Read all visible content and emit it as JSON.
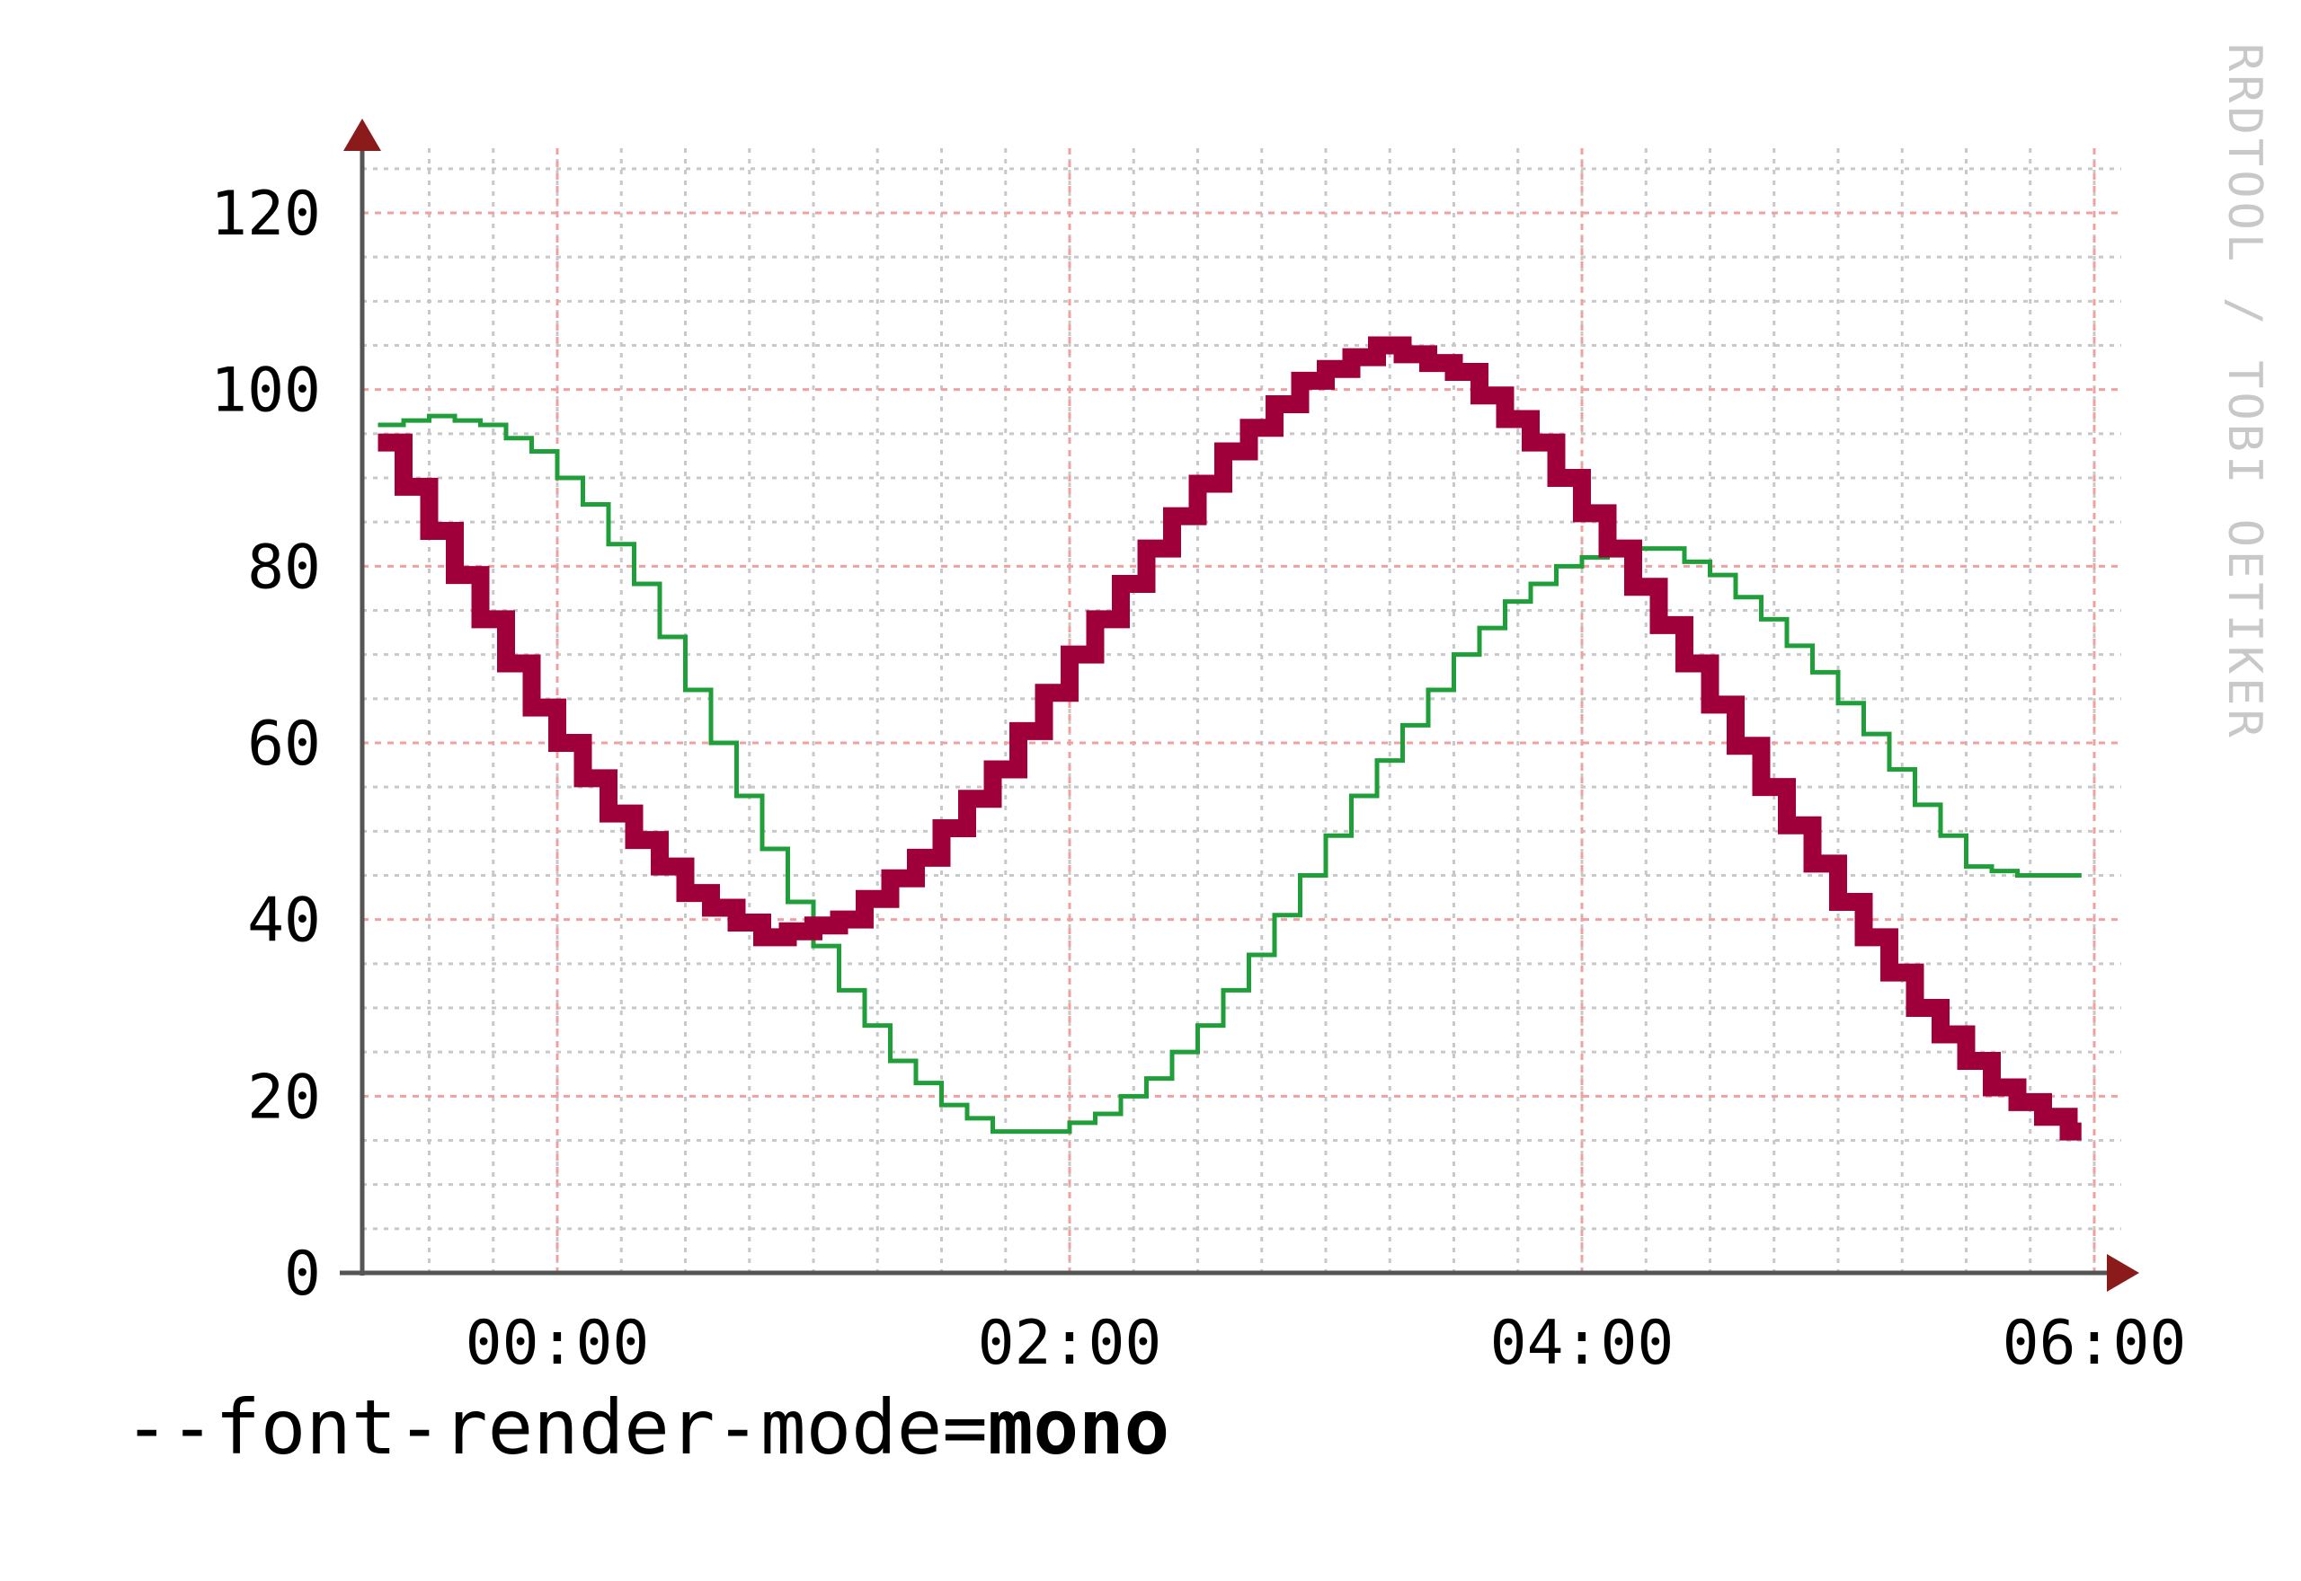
{
  "caption": {
    "prefix": "--font-render-mode=",
    "value": "mono"
  },
  "watermark": "RRDTOOL / TOBI OETIKER",
  "colors": {
    "background": "#ffffff",
    "major_grid": "#f0a0a0",
    "minor_grid": "#c8c8c8",
    "axis": "#555555",
    "arrow": "#8b1a1a",
    "series_thick": "#a0003a",
    "series_thin": "#1f9e3a"
  },
  "chart_data": {
    "type": "line",
    "title": "",
    "xlabel": "",
    "ylabel": "",
    "x_tick_labels": [
      "00:00",
      "02:00",
      "04:00",
      "06:00"
    ],
    "x_ticks_hours": [
      0,
      2,
      4,
      6
    ],
    "xlim_hours": [
      -0.75,
      6.0
    ],
    "y_tick_labels": [
      "0",
      "20",
      "40",
      "60",
      "80",
      "100",
      "120"
    ],
    "y_ticks": [
      0,
      20,
      40,
      60,
      80,
      100,
      120
    ],
    "ylim": [
      0,
      125
    ],
    "grid": true,
    "step": true,
    "x_step_hours": 0.1,
    "series": [
      {
        "color": "#a0003a",
        "style": "thick",
        "x_hours": [
          -0.7,
          -0.4,
          -0.1,
          0.2,
          0.5,
          0.8,
          1.1,
          1.4,
          1.7,
          2.0,
          2.3,
          2.6,
          2.9,
          3.2,
          3.5,
          3.8,
          4.1,
          4.4,
          4.7,
          5.0,
          5.3,
          5.6,
          5.9
        ],
        "values": [
          94,
          79,
          64,
          52,
          43,
          38,
          40,
          47,
          57,
          70,
          82,
          93,
          101,
          105,
          102,
          94,
          82,
          69,
          55,
          42,
          30,
          21,
          16
        ]
      },
      {
        "color": "#1f9e3a",
        "style": "thin",
        "x_hours": [
          -0.7,
          -0.5,
          -0.3,
          -0.1,
          0.1,
          0.3,
          0.5,
          0.7,
          0.9,
          1.1,
          1.3,
          1.5,
          1.7,
          1.9,
          2.1,
          2.3,
          2.5,
          2.7,
          2.9,
          3.1,
          3.3,
          3.5,
          3.7,
          3.9,
          4.1,
          4.3,
          4.5,
          4.7,
          4.9,
          5.1,
          5.3,
          5.5,
          5.7,
          5.9
        ],
        "values": [
          96,
          97,
          96,
          93,
          87,
          78,
          66,
          54,
          42,
          32,
          24,
          19,
          16,
          16,
          18,
          22,
          28,
          36,
          45,
          54,
          62,
          70,
          76,
          80,
          82,
          82,
          79,
          74,
          68,
          61,
          53,
          46,
          45,
          45
        ]
      }
    ]
  }
}
